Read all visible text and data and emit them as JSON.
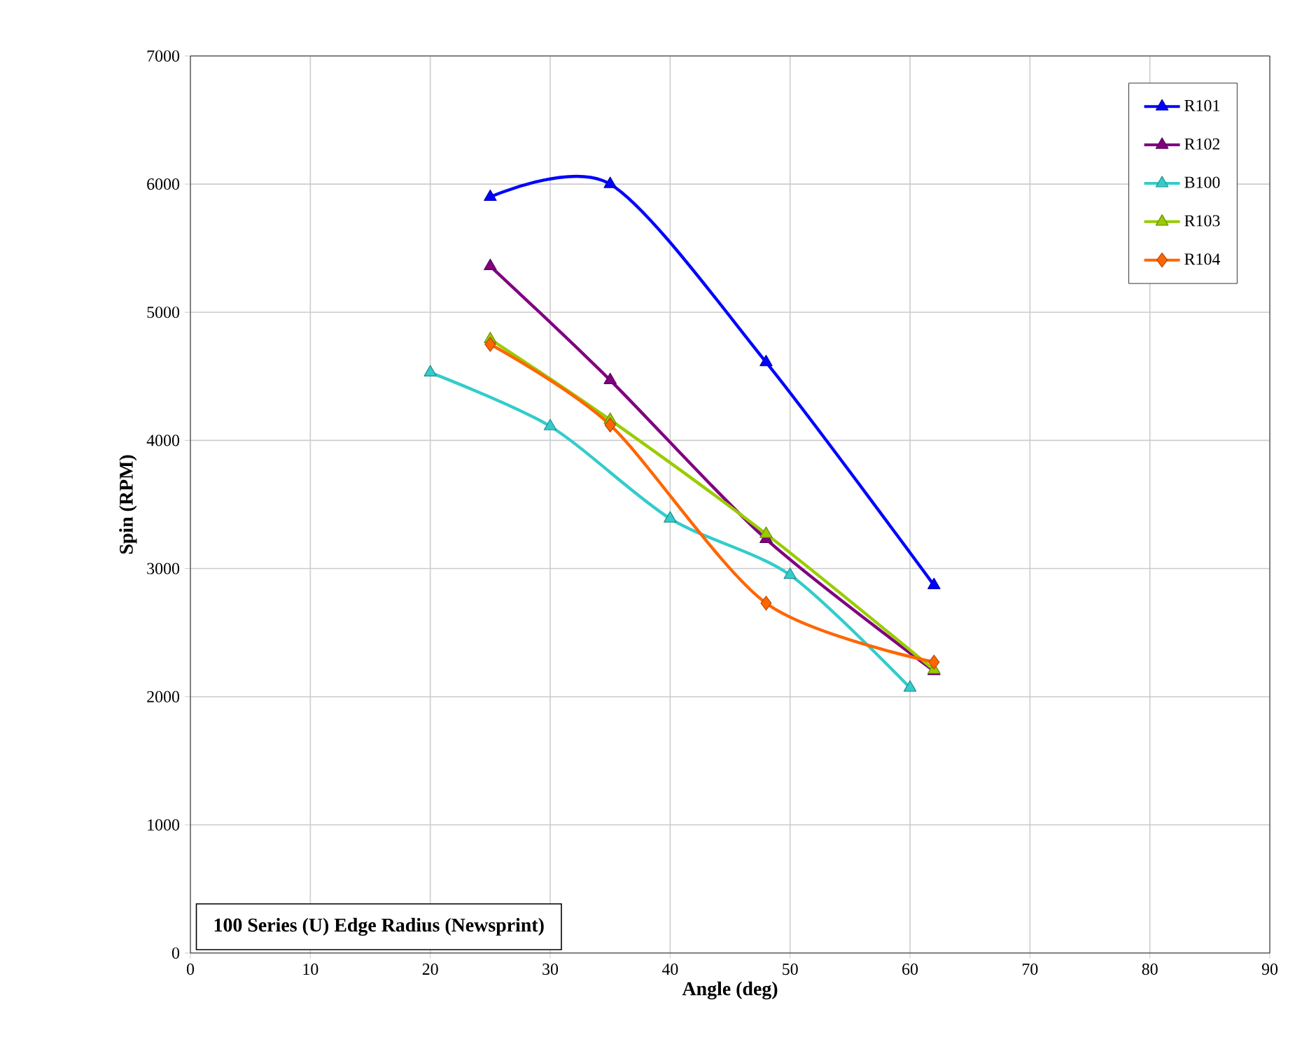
{
  "chart_data": {
    "type": "line",
    "title": "100 Series (U) Edge Radius (Newsprint)",
    "xlabel": "Angle (deg)",
    "ylabel": "Spin (RPM)",
    "xlim": [
      0,
      90
    ],
    "xticks": [
      0,
      10,
      20,
      30,
      40,
      50,
      60,
      70,
      80,
      90
    ],
    "ylim": [
      0,
      7000
    ],
    "yticks": [
      0,
      1000,
      2000,
      3000,
      4000,
      5000,
      6000,
      7000
    ],
    "grid": true,
    "legend": "top right",
    "line_style": "solid",
    "series": [
      {
        "name": "R101",
        "color": "#0000ff",
        "marker": "triangle",
        "x": [
          25,
          35,
          48,
          62
        ],
        "values": [
          5900,
          6000,
          4610,
          2870
        ]
      },
      {
        "name": "R102",
        "color": "#800080",
        "marker": "triangle",
        "x": [
          25,
          35,
          48,
          62
        ],
        "values": [
          5360,
          4470,
          3230,
          2200
        ]
      },
      {
        "name": "B100",
        "color": "#33cccc",
        "marker": "triangle",
        "x": [
          20,
          30,
          40,
          50,
          60
        ],
        "values": [
          4530,
          4110,
          3390,
          2950,
          2070
        ]
      },
      {
        "name": "R103",
        "color": "#99cc00",
        "marker": "triangle",
        "x": [
          25,
          35,
          48,
          62
        ],
        "values": [
          4790,
          4160,
          3270,
          2210
        ]
      },
      {
        "name": "R104",
        "color": "#ff6600",
        "marker": "diamond",
        "x": [
          25,
          35,
          48,
          62
        ],
        "values": [
          4750,
          4120,
          2730,
          2270
        ]
      }
    ]
  }
}
